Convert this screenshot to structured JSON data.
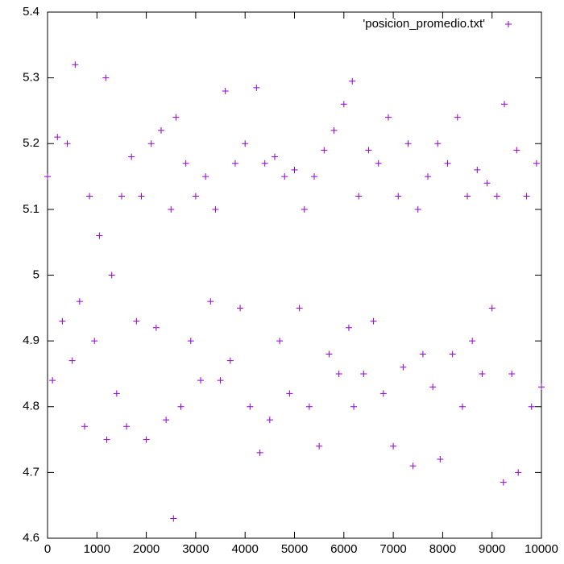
{
  "chart_data": {
    "type": "scatter",
    "marker": "+",
    "color": "#9400d3",
    "xlim": [
      0,
      10000
    ],
    "ylim": [
      4.6,
      5.4
    ],
    "xticks": [
      0,
      1000,
      2000,
      3000,
      4000,
      5000,
      6000,
      7000,
      8000,
      9000,
      10000
    ],
    "yticks": [
      4.6,
      4.7,
      4.8,
      4.9,
      5,
      5.1,
      5.2,
      5.3,
      5.4
    ],
    "legend": "top-right",
    "series": [
      {
        "name": "'posicion_promedio.txt'",
        "color": "#9400d3",
        "x": [
          0,
          100,
          200,
          300,
          400,
          500,
          560,
          650,
          750,
          850,
          950,
          1050,
          1180,
          1200,
          1300,
          1400,
          1500,
          1600,
          1700,
          1800,
          1900,
          2000,
          2100,
          2200,
          2300,
          2400,
          2500,
          2550,
          2600,
          2700,
          2800,
          2900,
          3000,
          3100,
          3200,
          3300,
          3400,
          3500,
          3600,
          3700,
          3800,
          3900,
          4000,
          4100,
          4230,
          4300,
          4400,
          4500,
          4600,
          4700,
          4800,
          4900,
          5000,
          5100,
          5200,
          5300,
          5400,
          5500,
          5600,
          5700,
          5800,
          5900,
          6000,
          6100,
          6170,
          6200,
          6300,
          6400,
          6500,
          6600,
          6700,
          6800,
          6900,
          7000,
          7100,
          7200,
          7300,
          7400,
          7500,
          7600,
          7700,
          7800,
          7900,
          7950,
          8100,
          8200,
          8300,
          8400,
          8500,
          8600,
          8700,
          8800,
          8900,
          9000,
          9100,
          9230,
          9250,
          9400,
          9500,
          9530,
          9700,
          9800,
          9900,
          10000
        ],
        "values": [
          5.15,
          4.84,
          5.21,
          4.93,
          5.2,
          4.87,
          5.32,
          4.96,
          4.77,
          5.12,
          4.9,
          5.06,
          5.3,
          4.75,
          5.0,
          4.82,
          5.12,
          4.77,
          5.18,
          4.93,
          5.12,
          4.75,
          5.2,
          4.92,
          5.22,
          4.78,
          5.1,
          4.63,
          5.24,
          4.8,
          5.17,
          4.9,
          5.12,
          4.84,
          5.15,
          4.96,
          5.1,
          4.84,
          5.28,
          4.87,
          5.17,
          4.95,
          5.2,
          4.8,
          5.285,
          4.73,
          5.17,
          4.78,
          5.18,
          4.9,
          5.15,
          4.82,
          5.16,
          4.95,
          5.1,
          4.8,
          5.15,
          4.74,
          5.19,
          4.88,
          5.22,
          4.85,
          5.26,
          4.92,
          5.295,
          4.8,
          5.12,
          4.85,
          5.19,
          4.93,
          5.17,
          4.82,
          5.24,
          4.74,
          5.12,
          4.86,
          5.2,
          4.71,
          5.1,
          4.88,
          5.15,
          4.83,
          5.2,
          4.72,
          5.17,
          4.88,
          5.24,
          4.8,
          5.12,
          4.9,
          5.16,
          4.85,
          5.14,
          4.95,
          5.12,
          4.685,
          5.26,
          4.85,
          5.19,
          4.7,
          5.12,
          4.8,
          5.17,
          4.83
        ]
      }
    ]
  }
}
